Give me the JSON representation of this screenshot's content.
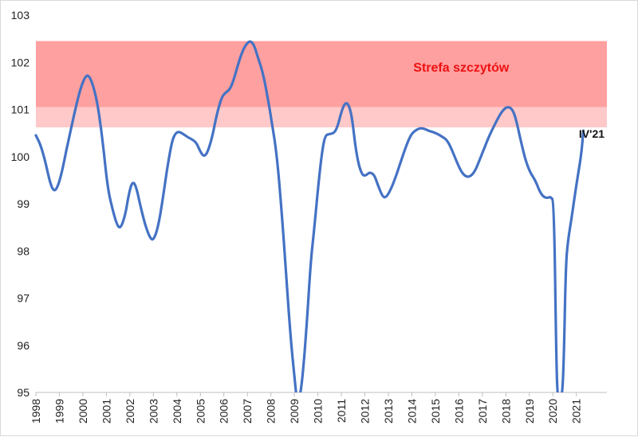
{
  "chart_data": {
    "type": "line",
    "title": "",
    "xlabel": "",
    "ylabel": "",
    "ylim": [
      95,
      103
    ],
    "xlim": [
      1998,
      2022.3
    ],
    "yticks": [
      95,
      96,
      97,
      98,
      99,
      100,
      101,
      102,
      103
    ],
    "xticks": [
      "1998",
      "1999",
      "2000",
      "2001",
      "2002",
      "2003",
      "2004",
      "2005",
      "2006",
      "2007",
      "2008",
      "2009",
      "2010",
      "2011",
      "2012",
      "2013",
      "2014",
      "2015",
      "2016",
      "2017",
      "2018",
      "2019",
      "2020",
      "2021"
    ],
    "grid": false,
    "bands": [
      {
        "name": "peak-zone-core",
        "from": 101.05,
        "to": 102.45,
        "color": "#ffa0a0"
      },
      {
        "name": "peak-zone-outer",
        "from": 100.62,
        "to": 101.05,
        "color": "#ffc9c9"
      }
    ],
    "annotations": [
      {
        "name": "peak-zone-label",
        "text": "Strefa szczytów",
        "x": 2016.1,
        "y": 101.8,
        "color": "#ee1111"
      },
      {
        "name": "last-point-label",
        "text": "IV'21",
        "x": 2022.2,
        "y": 100.4
      }
    ],
    "series": [
      {
        "name": "indicator",
        "color": "#4472c4",
        "points": [
          [
            1998.0,
            100.45
          ],
          [
            1998.2,
            100.25
          ],
          [
            1998.4,
            99.9
          ],
          [
            1998.6,
            99.45
          ],
          [
            1998.75,
            99.27
          ],
          [
            1998.9,
            99.32
          ],
          [
            1999.1,
            99.65
          ],
          [
            1999.3,
            100.15
          ],
          [
            1999.5,
            100.6
          ],
          [
            1999.7,
            101.05
          ],
          [
            1999.9,
            101.45
          ],
          [
            2000.1,
            101.7
          ],
          [
            2000.25,
            101.73
          ],
          [
            2000.45,
            101.5
          ],
          [
            2000.65,
            101.05
          ],
          [
            2000.85,
            100.3
          ],
          [
            2001.05,
            99.35
          ],
          [
            2001.25,
            98.9
          ],
          [
            2001.45,
            98.55
          ],
          [
            2001.6,
            98.47
          ],
          [
            2001.8,
            98.75
          ],
          [
            2001.95,
            99.2
          ],
          [
            2002.1,
            99.47
          ],
          [
            2002.25,
            99.4
          ],
          [
            2002.45,
            98.95
          ],
          [
            2002.65,
            98.55
          ],
          [
            2002.85,
            98.28
          ],
          [
            2003.0,
            98.22
          ],
          [
            2003.2,
            98.5
          ],
          [
            2003.4,
            99.1
          ],
          [
            2003.6,
            99.8
          ],
          [
            2003.8,
            100.35
          ],
          [
            2003.95,
            100.5
          ],
          [
            2004.1,
            100.53
          ],
          [
            2004.3,
            100.47
          ],
          [
            2004.5,
            100.4
          ],
          [
            2004.7,
            100.35
          ],
          [
            2004.85,
            100.28
          ],
          [
            2005.0,
            100.1
          ],
          [
            2005.15,
            100.0
          ],
          [
            2005.3,
            100.08
          ],
          [
            2005.5,
            100.4
          ],
          [
            2005.7,
            100.9
          ],
          [
            2005.9,
            101.25
          ],
          [
            2006.05,
            101.35
          ],
          [
            2006.25,
            101.42
          ],
          [
            2006.4,
            101.6
          ],
          [
            2006.6,
            101.95
          ],
          [
            2006.8,
            102.25
          ],
          [
            2007.0,
            102.42
          ],
          [
            2007.15,
            102.45
          ],
          [
            2007.3,
            102.35
          ],
          [
            2007.45,
            102.1
          ],
          [
            2007.65,
            101.8
          ],
          [
            2007.85,
            101.3
          ],
          [
            2008.05,
            100.7
          ],
          [
            2008.25,
            100.05
          ],
          [
            2008.45,
            98.9
          ],
          [
            2008.65,
            97.5
          ],
          [
            2008.85,
            96.1
          ],
          [
            2009.0,
            95.35
          ],
          [
            2009.1,
            94.85
          ],
          [
            2009.2,
            94.8
          ],
          [
            2009.35,
            95.3
          ],
          [
            2009.55,
            96.6
          ],
          [
            2009.7,
            97.8
          ],
          [
            2009.85,
            98.5
          ],
          [
            2010.0,
            99.3
          ],
          [
            2010.15,
            100.0
          ],
          [
            2010.3,
            100.45
          ],
          [
            2010.5,
            100.48
          ],
          [
            2010.7,
            100.5
          ],
          [
            2010.85,
            100.65
          ],
          [
            2011.0,
            100.95
          ],
          [
            2011.15,
            101.14
          ],
          [
            2011.3,
            101.12
          ],
          [
            2011.45,
            100.85
          ],
          [
            2011.6,
            100.2
          ],
          [
            2011.75,
            99.8
          ],
          [
            2011.9,
            99.6
          ],
          [
            2012.05,
            99.6
          ],
          [
            2012.2,
            99.67
          ],
          [
            2012.4,
            99.62
          ],
          [
            2012.55,
            99.4
          ],
          [
            2012.75,
            99.15
          ],
          [
            2012.9,
            99.13
          ],
          [
            2013.1,
            99.3
          ],
          [
            2013.3,
            99.55
          ],
          [
            2013.5,
            99.85
          ],
          [
            2013.7,
            100.15
          ],
          [
            2013.9,
            100.4
          ],
          [
            2014.05,
            100.52
          ],
          [
            2014.3,
            100.6
          ],
          [
            2014.5,
            100.6
          ],
          [
            2014.7,
            100.55
          ],
          [
            2014.9,
            100.52
          ],
          [
            2015.1,
            100.48
          ],
          [
            2015.3,
            100.42
          ],
          [
            2015.5,
            100.35
          ],
          [
            2015.7,
            100.15
          ],
          [
            2015.9,
            99.9
          ],
          [
            2016.1,
            99.68
          ],
          [
            2016.3,
            99.57
          ],
          [
            2016.5,
            99.58
          ],
          [
            2016.7,
            99.7
          ],
          [
            2016.9,
            99.95
          ],
          [
            2017.1,
            100.2
          ],
          [
            2017.3,
            100.45
          ],
          [
            2017.5,
            100.65
          ],
          [
            2017.7,
            100.85
          ],
          [
            2017.9,
            101.0
          ],
          [
            2018.05,
            101.05
          ],
          [
            2018.2,
            101.04
          ],
          [
            2018.35,
            100.93
          ],
          [
            2018.5,
            100.65
          ],
          [
            2018.65,
            100.3
          ],
          [
            2018.85,
            99.9
          ],
          [
            2019.05,
            99.65
          ],
          [
            2019.25,
            99.5
          ],
          [
            2019.45,
            99.25
          ],
          [
            2019.6,
            99.15
          ],
          [
            2019.75,
            99.12
          ],
          [
            2019.9,
            99.15
          ],
          [
            2020.05,
            99.05
          ],
          [
            2020.15,
            95.5
          ],
          [
            2020.22,
            94.8
          ],
          [
            2020.35,
            94.8
          ],
          [
            2020.45,
            95.3
          ],
          [
            2020.55,
            97.7
          ],
          [
            2020.65,
            98.25
          ],
          [
            2020.8,
            98.7
          ],
          [
            2021.0,
            99.4
          ],
          [
            2021.2,
            100.0
          ],
          [
            2021.3,
            100.55
          ]
        ]
      }
    ]
  }
}
